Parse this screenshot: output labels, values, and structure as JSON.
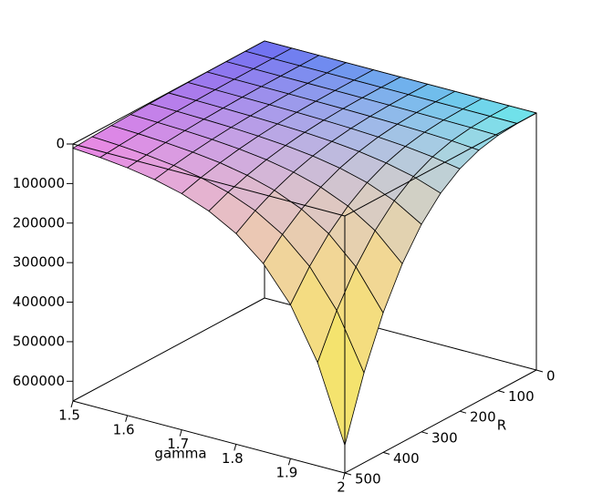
{
  "chart_data": {
    "type": "surface",
    "xlabel": "gamma",
    "ylabel": "R",
    "x": [
      1.5,
      1.55,
      1.6,
      1.65,
      1.7,
      1.75,
      1.8,
      1.85,
      1.9,
      1.95,
      2.0
    ],
    "y": [
      0,
      50,
      100,
      150,
      200,
      250,
      300,
      350,
      400,
      450,
      500
    ],
    "z": [
      [
        0,
        0,
        100,
        300,
        700,
        1300,
        2300,
        3600,
        5400,
        7700,
        10600
      ],
      [
        0,
        0,
        100,
        400,
        1000,
        2000,
        3400,
        5400,
        8100,
        11500,
        15800
      ],
      [
        0,
        0,
        200,
        600,
        1500,
        3000,
        5100,
        8100,
        12100,
        17300,
        23700
      ],
      [
        0,
        0,
        300,
        1000,
        2300,
        4400,
        7600,
        12100,
        18100,
        25700,
        35300
      ],
      [
        0,
        100,
        400,
        1400,
        3400,
        6600,
        11400,
        18000,
        26900,
        38300,
        52600
      ],
      [
        0,
        100,
        600,
        2100,
        5000,
        9800,
        17000,
        26900,
        40200,
        57200,
        78500
      ],
      [
        0,
        100,
        900,
        3200,
        7500,
        14600,
        25300,
        40200,
        60000,
        85400,
        117100
      ],
      [
        0,
        200,
        1400,
        4700,
        11200,
        21800,
        37700,
        59900,
        89400,
        127400,
        174700
      ],
      [
        0,
        300,
        2100,
        7000,
        16700,
        32600,
        56300,
        89400,
        133400,
        190000,
        260600
      ],
      [
        0,
        400,
        3100,
        10500,
        24900,
        48600,
        84000,
        133400,
        199100,
        283400,
        388800
      ],
      [
        0,
        600,
        4600,
        15700,
        37100,
        72500,
        125300,
        198900,
        297000,
        422800,
        580000
      ]
    ],
    "xlim": [
      1.5,
      2
    ],
    "ylim": [
      0,
      500
    ],
    "zlim": [
      0,
      650000
    ],
    "xticks": [
      1.5,
      1.6,
      1.7,
      1.8,
      1.9,
      2
    ],
    "yticks": [
      0,
      100,
      200,
      300,
      400,
      500
    ],
    "zticks": [
      0,
      100000,
      200000,
      300000,
      400000,
      500000,
      600000
    ],
    "z_inverted": true,
    "colormap": [
      "#6c6cf2",
      "#ea76ea",
      "#66eaea",
      "#c8c8ee",
      "#f4ea5a"
    ]
  }
}
